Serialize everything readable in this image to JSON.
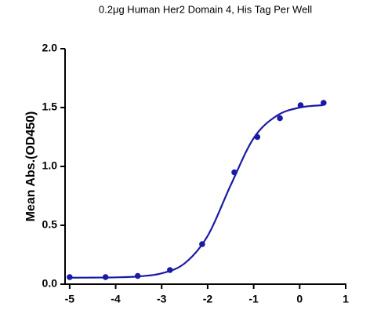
{
  "chart_data": {
    "type": "scatter",
    "subtitle": "0.2μg Human Her2 Domain 4, His Tag Per Well",
    "y_label": "Mean Abs.(OD450)",
    "xlim": [
      -5.1,
      1
    ],
    "ylim": [
      0,
      2
    ],
    "xticks": [
      -5,
      -4,
      -3,
      -2,
      -1,
      0,
      1
    ],
    "yticks": [
      {
        "value": 0,
        "label": "0.0"
      },
      {
        "value": 0.5,
        "label": "0.5"
      },
      {
        "value": 1,
        "label": "1.0"
      },
      {
        "value": 1.5,
        "label": "1.5"
      },
      {
        "value": 2,
        "label": "2.0"
      }
    ],
    "series": [
      {
        "color": "#1a1aa6",
        "mode": "markers",
        "x": [
          -5.0,
          -4.22,
          -3.52,
          -2.82,
          -2.12,
          -1.42,
          -0.92,
          -0.43,
          0.02,
          0.52
        ],
        "values": [
          0.06,
          0.06,
          0.07,
          0.12,
          0.34,
          0.95,
          1.25,
          1.41,
          1.52,
          1.54
        ]
      },
      {
        "color": "#1a1aa6",
        "mode": "line",
        "x": [
          -5,
          -4.5,
          -4,
          -3.5,
          -3,
          -2.5,
          -2,
          -1.5,
          -1,
          -0.5,
          0,
          0.5
        ],
        "values": [
          0.055,
          0.056,
          0.058,
          0.066,
          0.092,
          0.177,
          0.41,
          0.84,
          1.24,
          1.43,
          1.5,
          1.52
        ]
      }
    ]
  }
}
